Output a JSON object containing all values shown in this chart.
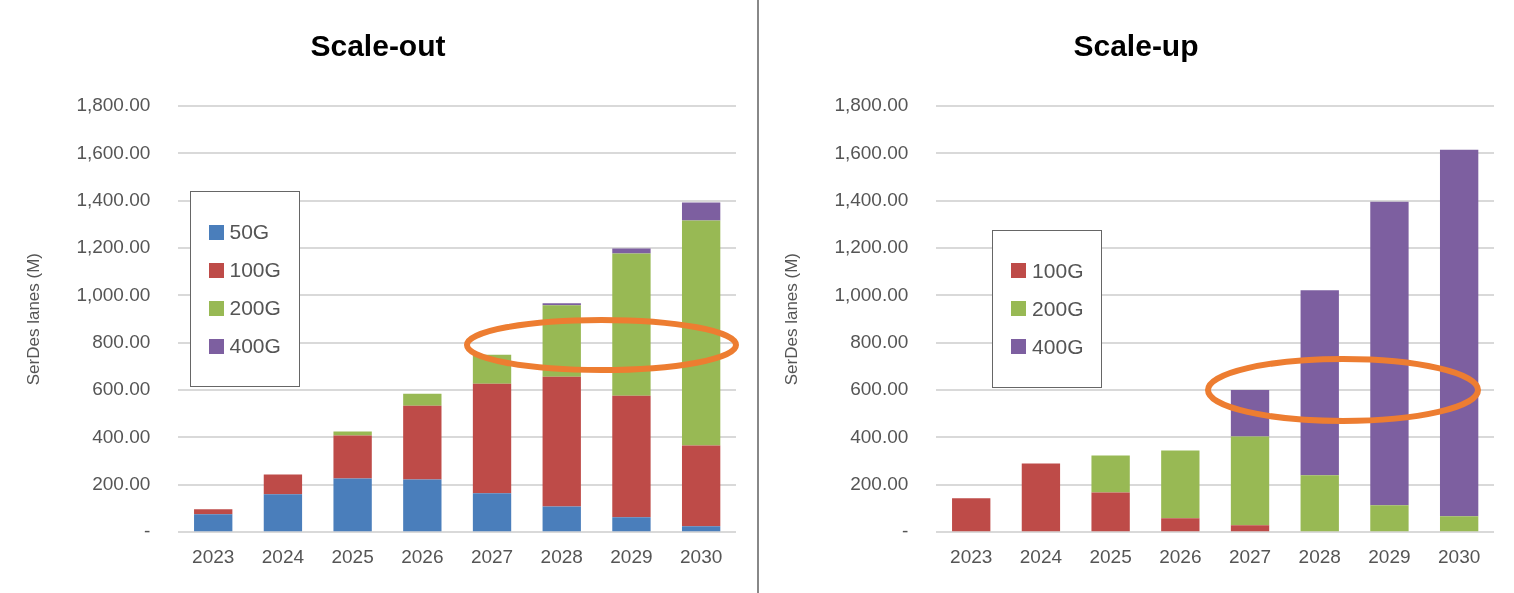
{
  "chart_data": [
    {
      "type": "bar",
      "title": "Scale-out",
      "ylabel": "SerDes lanes (M)",
      "categories": [
        "2023",
        "2024",
        "2025",
        "2026",
        "2027",
        "2028",
        "2029",
        "2030"
      ],
      "stacked": true,
      "ylim": [
        0,
        1800
      ],
      "yticks": [
        {
          "value": 0,
          "label": "-"
        },
        {
          "value": 200,
          "label": "200.00"
        },
        {
          "value": 400,
          "label": "400.00"
        },
        {
          "value": 600,
          "label": "600.00"
        },
        {
          "value": 800,
          "label": "800.00"
        },
        {
          "value": 1000,
          "label": "1,000.00"
        },
        {
          "value": 1200,
          "label": "1,200.00"
        },
        {
          "value": 1400,
          "label": "1,400.00"
        },
        {
          "value": 1600,
          "label": "1,600.00"
        },
        {
          "value": 1800,
          "label": "1,800.00"
        }
      ],
      "grid": "y",
      "legend": "top left",
      "series": [
        {
          "name": "50G",
          "color": "#4a7ebb",
          "values": [
            76,
            160,
            227,
            223,
            164,
            109,
            63,
            25
          ]
        },
        {
          "name": "100G",
          "color": "#be4b48",
          "values": [
            21,
            84,
            181,
            311,
            463,
            547,
            513,
            341
          ]
        },
        {
          "name": "200G",
          "color": "#98b954",
          "values": [
            0,
            0,
            17,
            51,
            122,
            303,
            601,
            950
          ]
        },
        {
          "name": "400G",
          "color": "#7d5fa0",
          "values": [
            0,
            0,
            0,
            0,
            0,
            8,
            21,
            76
          ]
        }
      ]
    },
    {
      "type": "bar",
      "title": "Scale-up",
      "ylabel": "SerDes lanes (M)",
      "categories": [
        "2023",
        "2024",
        "2025",
        "2026",
        "2027",
        "2028",
        "2029",
        "2030"
      ],
      "stacked": true,
      "ylim": [
        0,
        1800
      ],
      "yticks": [
        {
          "value": 0,
          "label": "-"
        },
        {
          "value": 200,
          "label": "200.00"
        },
        {
          "value": 400,
          "label": "400.00"
        },
        {
          "value": 600,
          "label": "600.00"
        },
        {
          "value": 800,
          "label": "800.00"
        },
        {
          "value": 1000,
          "label": "1,000.00"
        },
        {
          "value": 1200,
          "label": "1,200.00"
        },
        {
          "value": 1400,
          "label": "1,400.00"
        },
        {
          "value": 1600,
          "label": "1,600.00"
        },
        {
          "value": 1800,
          "label": "1,800.00"
        }
      ],
      "grid": "y",
      "legend": "left",
      "series": [
        {
          "name": "100G",
          "color": "#be4b48",
          "values": [
            143,
            290,
            168,
            59,
            29,
            0,
            0,
            0
          ]
        },
        {
          "name": "200G",
          "color": "#98b954",
          "values": [
            0,
            0,
            156,
            286,
            375,
            240,
            114,
            67
          ]
        },
        {
          "name": "400G",
          "color": "#7d5fa0",
          "values": [
            0,
            0,
            0,
            0,
            197,
            782,
            1282,
            1548
          ]
        }
      ]
    }
  ]
}
